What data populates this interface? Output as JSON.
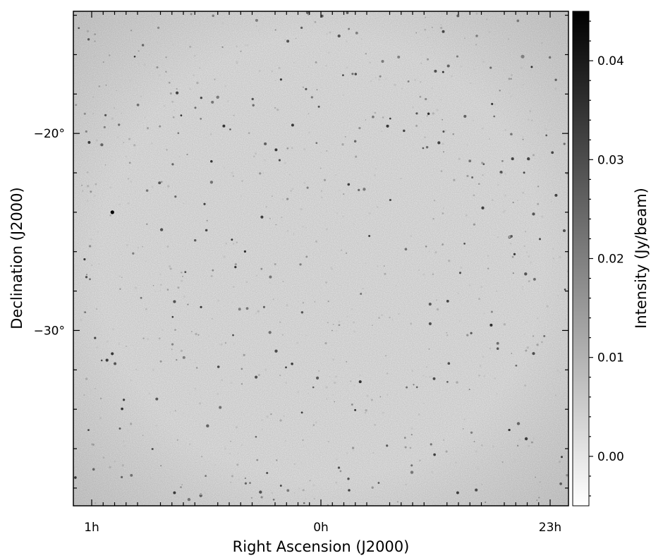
{
  "chart_data": {
    "type": "heatmap",
    "subject": "radio continuum sky image (greyscale)",
    "xlabel": "Right Ascension (J2000)",
    "ylabel": "Declination (J2000)",
    "x_ticks": [
      {
        "label": "1h",
        "ra_hours": 1
      },
      {
        "label": "0h",
        "ra_hours": 0
      },
      {
        "label": "23h",
        "ra_hours": -1
      }
    ],
    "y_ticks": [
      {
        "label": "−20°",
        "dec_deg": -20
      },
      {
        "label": "−30°",
        "dec_deg": -30
      }
    ],
    "xlim_hours": [
      1.08,
      -1.08
    ],
    "ylim_deg": [
      -38.9,
      -13.8
    ],
    "colorbar": {
      "label": "Intensity (Jy/beam)",
      "colormap": "gray_r",
      "range": [
        -0.005,
        0.045
      ],
      "ticks": [
        {
          "label": "0.00",
          "value": 0.0
        },
        {
          "label": "0.01",
          "value": 0.01
        },
        {
          "label": "0.02",
          "value": 0.02
        },
        {
          "label": "0.03",
          "value": 0.03
        },
        {
          "label": "0.04",
          "value": 0.04
        }
      ]
    },
    "background_intensity": 0.0,
    "colors": {
      "background": "#e6e6e6",
      "frame": "#000000"
    },
    "grid": false,
    "source_count": 900,
    "bright_sources": [
      {
        "ra_hours": 0.91,
        "dec_deg": -24.0,
        "intensity": 0.045
      },
      {
        "ra_hours": -0.88,
        "dec_deg": -16.1,
        "intensity": 0.02
      }
    ]
  }
}
